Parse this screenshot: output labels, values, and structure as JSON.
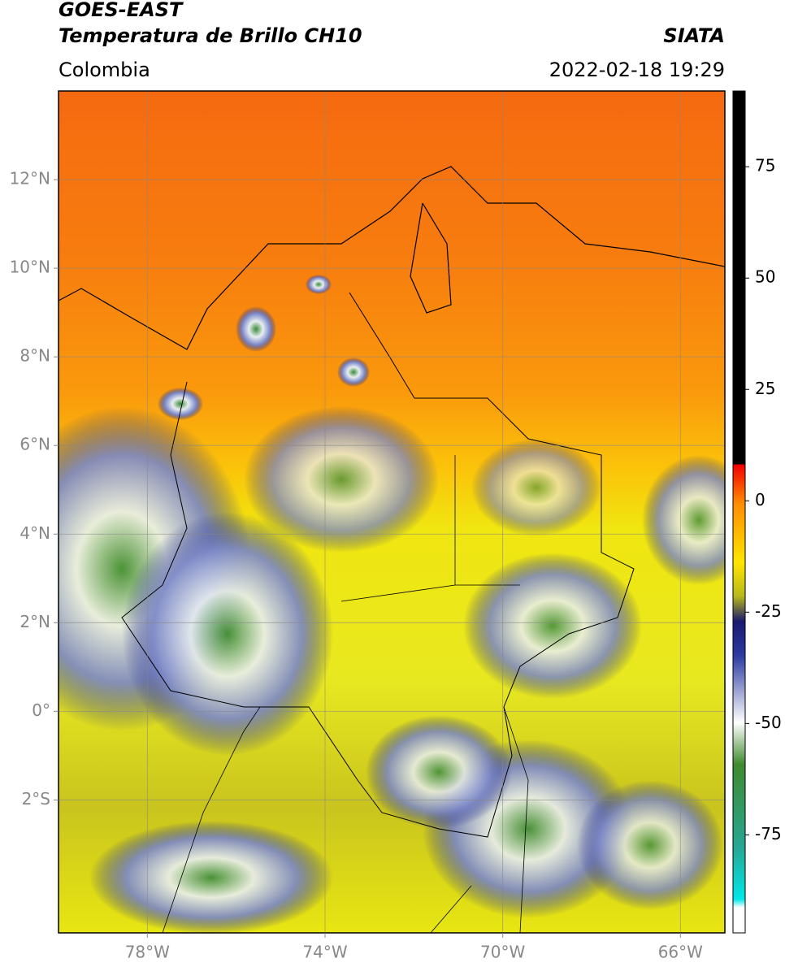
{
  "header": {
    "title": "GOES-EAST",
    "subtitle": "Temperatura de Brillo CH10",
    "source": "SIATA",
    "region": "Colombia",
    "timestamp": "2022-02-18 19:29"
  },
  "map": {
    "lon_range": [
      -80,
      -65
    ],
    "lat_range": [
      -5,
      14
    ],
    "lon_ticks": [
      {
        "value": -78,
        "label": "78°W"
      },
      {
        "value": -74,
        "label": "74°W"
      },
      {
        "value": -70,
        "label": "70°W"
      },
      {
        "value": -66,
        "label": "66°W"
      }
    ],
    "lat_ticks": [
      {
        "value": 12,
        "label": "12°N"
      },
      {
        "value": 10,
        "label": "10°N"
      },
      {
        "value": 8,
        "label": "8°N"
      },
      {
        "value": 6,
        "label": "6°N"
      },
      {
        "value": 4,
        "label": "4°N"
      },
      {
        "value": 2,
        "label": "2°N"
      },
      {
        "value": 0,
        "label": "0°"
      },
      {
        "value": -2,
        "label": "2°S"
      }
    ]
  },
  "colorbar": {
    "range": [
      -97,
      92
    ],
    "ticks": [
      75,
      50,
      25,
      0,
      -25,
      -50,
      -75
    ]
  }
}
